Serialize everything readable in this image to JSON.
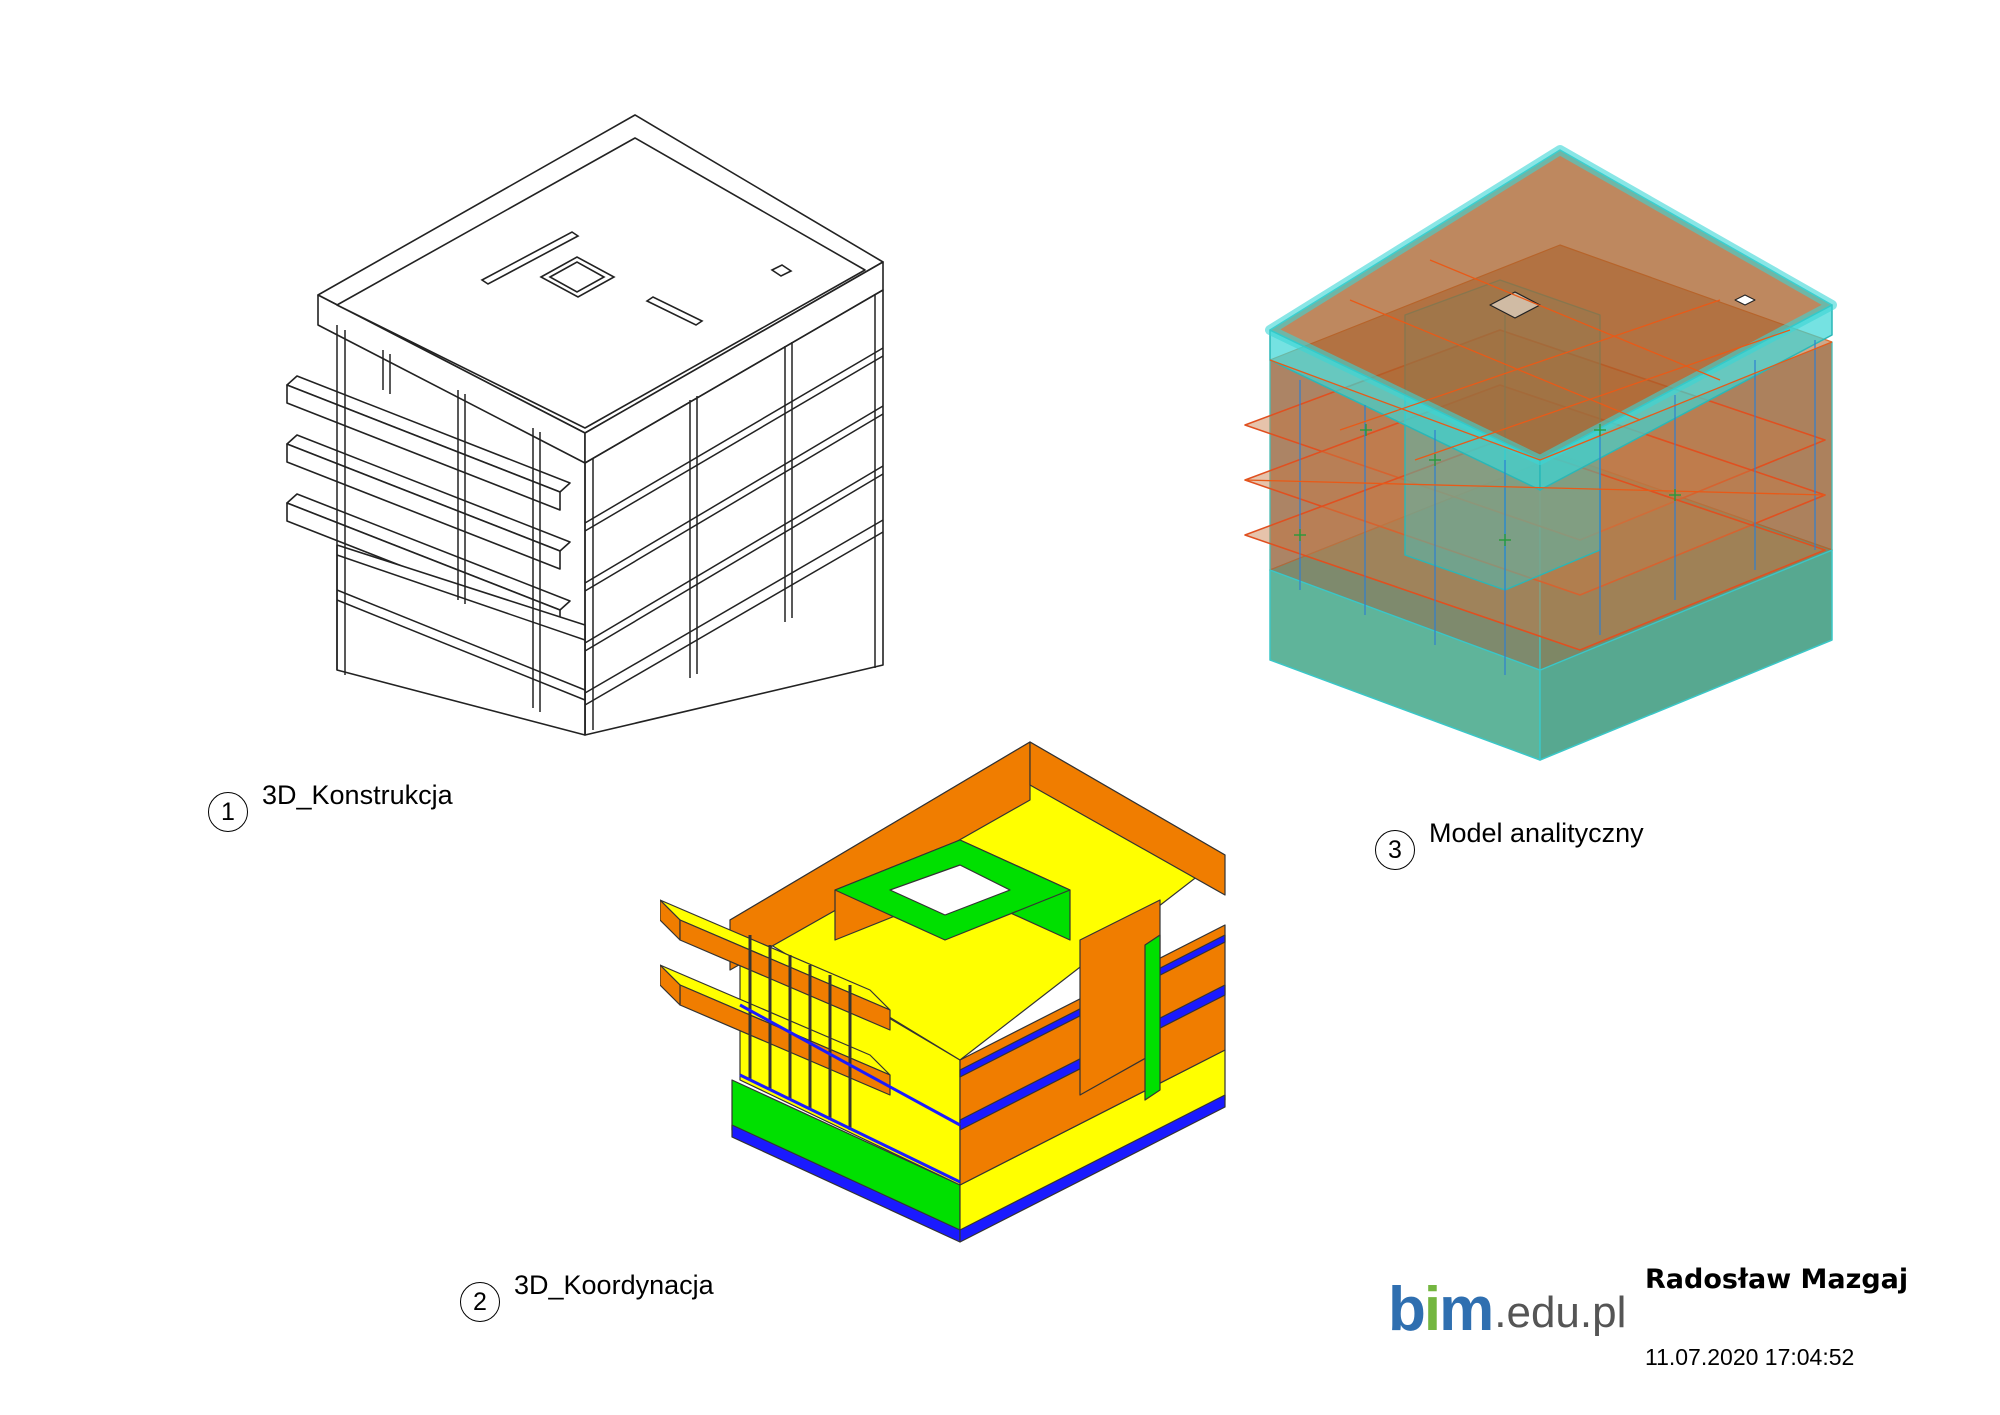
{
  "views": [
    {
      "number": "1",
      "title": "3D_Konstrukcja"
    },
    {
      "number": "2",
      "title": "3D_Koordynacja"
    },
    {
      "number": "3",
      "title": "Model analityczny"
    }
  ],
  "logo": {
    "b": "b",
    "i": "i",
    "m": "m",
    "domain": ".edu.pl"
  },
  "author": "Radosław Mazgaj",
  "timestamp": "11.07.2020 17:04:52",
  "colors": {
    "coordination_yellow": "#ffff00",
    "coordination_orange": "#f07d00",
    "coordination_green": "#00e000",
    "coordination_blue": "#1a1aff",
    "analytical_cyan": "#44d6d6",
    "analytical_brown": "#a8602a"
  }
}
